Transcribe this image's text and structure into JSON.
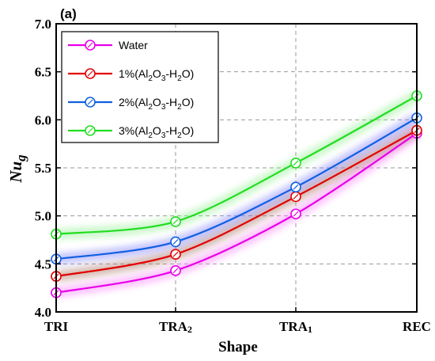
{
  "chart_data": {
    "type": "line",
    "panel_label": "(a)",
    "xlabel": "Shape",
    "ylabel_main": "Nu",
    "ylabel_sub": "g",
    "categories": [
      "TRI",
      "TRA",
      "TRA",
      "REC"
    ],
    "category_subscripts": [
      "",
      "2",
      "1",
      ""
    ],
    "ylim": [
      4.0,
      7.0
    ],
    "yticks": [
      "4.0",
      "4.5",
      "5.0",
      "5.5",
      "6.0",
      "6.5",
      "7.0"
    ],
    "grid": "dashed vertical and horizontal",
    "legend_position": "top-left",
    "series": [
      {
        "name": "Water",
        "color": "#e800e8",
        "glow": "#ff80ff",
        "values": [
          4.2,
          4.43,
          5.02,
          5.86
        ]
      },
      {
        "name": "1%(Al2O3-H2O)",
        "label_parts": [
          "1%(Al",
          "2",
          "O",
          "3",
          "-H",
          "2",
          "O)"
        ],
        "color": "#e30000",
        "glow": "#a87060",
        "values": [
          4.37,
          4.6,
          5.2,
          5.89
        ]
      },
      {
        "name": "2%(Al2O3-H2O)",
        "label_parts": [
          "2%(Al",
          "2",
          "O",
          "3",
          "-H",
          "2",
          "O)"
        ],
        "color": "#1060e0",
        "glow": "#8080ff",
        "values": [
          4.55,
          4.73,
          5.3,
          6.02
        ]
      },
      {
        "name": "3%(Al2O3-H2O)",
        "label_parts": [
          "3%(Al",
          "2",
          "O",
          "3",
          "-H",
          "2",
          "O)"
        ],
        "color": "#22dd22",
        "glow": "#8ef08e",
        "values": [
          4.81,
          4.94,
          5.55,
          6.25
        ]
      }
    ]
  }
}
